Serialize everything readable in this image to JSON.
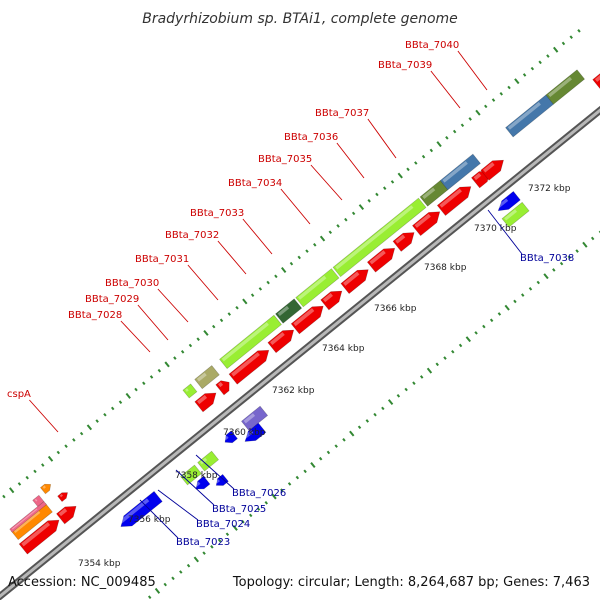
{
  "title": "Bradyrhizobium sp. BTAi1, complete genome",
  "footer": {
    "accession": "Accession: NC_009485",
    "topology": "Topology: circular; Length: 8,264,687 bp; Genes: 7,463"
  },
  "ticks": [
    "7354 kbp",
    "7356 kbp",
    "7358 kbp",
    "7360 kbp",
    "7362 kbp",
    "7364 kbp",
    "7366 kbp",
    "7368 kbp",
    "7370 kbp",
    "7372 kbp"
  ],
  "labels_forward": [
    "cspA",
    "BBta_7028",
    "BBta_7029",
    "BBta_7030",
    "BBta_7031",
    "BBta_7032",
    "BBta_7033",
    "BBta_7034",
    "BBta_7035",
    "BBta_7036",
    "BBta_7037",
    "BBta_7039",
    "BBta_7040"
  ],
  "labels_reverse": [
    "BBta_7023",
    "BBta_7024",
    "BBta_7025",
    "BBta_7026",
    "BBta_7038"
  ],
  "colors": {
    "backbone": "#888888",
    "cds_forward": "#ee0000",
    "cds_reverse": "#0000ee",
    "light_green": "#99ee33",
    "dark_green": "#336633",
    "olive": "#668833",
    "steel_blue": "#4477aa",
    "purple": "#7766cc",
    "orange": "#ff8800",
    "pink": "#ee6688",
    "tick_green": "#338833",
    "label_red": "#cc0000",
    "label_blue": "#000099"
  }
}
